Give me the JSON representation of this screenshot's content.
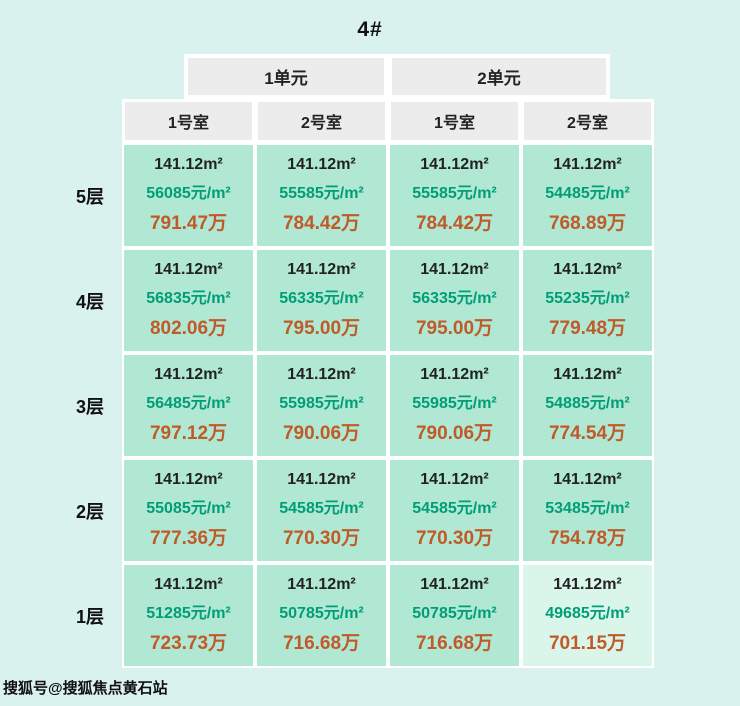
{
  "title": "4#",
  "watermark": "搜狐号@搜狐焦点黄石站",
  "colors": {
    "page_bg": "#d9f2ed",
    "cell_bg": "#b0e8d3",
    "cell_bg_highlight": "#daf5ea",
    "header_bg": "#ececec",
    "area_text": "#222222",
    "unit_price_text": "#009e76",
    "total_text": "#c05a28"
  },
  "chart_data": {
    "type": "table",
    "title": "4#",
    "units": [
      "1单元",
      "2单元"
    ],
    "rooms": [
      "1号室",
      "2号室",
      "1号室",
      "2号室"
    ],
    "floors": [
      "5层",
      "4层",
      "3层",
      "2层",
      "1层"
    ],
    "rows": [
      {
        "floor": "5层",
        "cells": [
          {
            "area": "141.12m²",
            "unit_price": "56085元/m²",
            "total": "791.47万"
          },
          {
            "area": "141.12m²",
            "unit_price": "55585元/m²",
            "total": "784.42万"
          },
          {
            "area": "141.12m²",
            "unit_price": "55585元/m²",
            "total": "784.42万"
          },
          {
            "area": "141.12m²",
            "unit_price": "54485元/m²",
            "total": "768.89万"
          }
        ]
      },
      {
        "floor": "4层",
        "cells": [
          {
            "area": "141.12m²",
            "unit_price": "56835元/m²",
            "total": "802.06万"
          },
          {
            "area": "141.12m²",
            "unit_price": "56335元/m²",
            "total": "795.00万"
          },
          {
            "area": "141.12m²",
            "unit_price": "56335元/m²",
            "total": "795.00万"
          },
          {
            "area": "141.12m²",
            "unit_price": "55235元/m²",
            "total": "779.48万"
          }
        ]
      },
      {
        "floor": "3层",
        "cells": [
          {
            "area": "141.12m²",
            "unit_price": "56485元/m²",
            "total": "797.12万"
          },
          {
            "area": "141.12m²",
            "unit_price": "55985元/m²",
            "total": "790.06万"
          },
          {
            "area": "141.12m²",
            "unit_price": "55985元/m²",
            "total": "790.06万"
          },
          {
            "area": "141.12m²",
            "unit_price": "54885元/m²",
            "total": "774.54万"
          }
        ]
      },
      {
        "floor": "2层",
        "cells": [
          {
            "area": "141.12m²",
            "unit_price": "55085元/m²",
            "total": "777.36万"
          },
          {
            "area": "141.12m²",
            "unit_price": "54585元/m²",
            "total": "770.30万"
          },
          {
            "area": "141.12m²",
            "unit_price": "54585元/m²",
            "total": "770.30万"
          },
          {
            "area": "141.12m²",
            "unit_price": "53485元/m²",
            "total": "754.78万"
          }
        ]
      },
      {
        "floor": "1层",
        "cells": [
          {
            "area": "141.12m²",
            "unit_price": "51285元/m²",
            "total": "723.73万"
          },
          {
            "area": "141.12m²",
            "unit_price": "50785元/m²",
            "total": "716.68万"
          },
          {
            "area": "141.12m²",
            "unit_price": "50785元/m²",
            "total": "716.68万"
          },
          {
            "area": "141.12m²",
            "unit_price": "49685元/m²",
            "total": "701.15万",
            "highlight": true
          }
        ]
      }
    ]
  }
}
